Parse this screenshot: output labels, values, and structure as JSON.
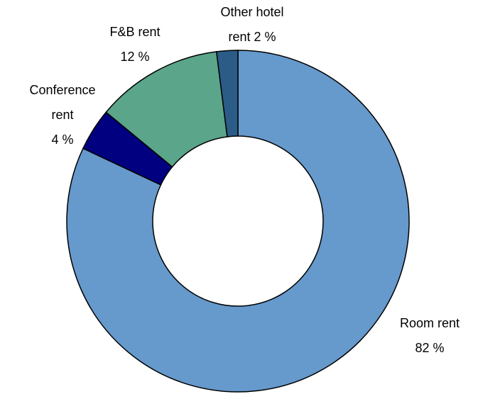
{
  "chart_data": {
    "type": "donut",
    "categories": [
      "Room rent",
      "Conference rent",
      "F&B rent",
      "Other hotel rent"
    ],
    "values": [
      82,
      4,
      12,
      2
    ],
    "value_labels": [
      "82 %",
      "4 %",
      "12 %",
      "2 %"
    ],
    "colors": [
      "#6699cc",
      "#000080",
      "#5ba58a",
      "#2b5c88"
    ]
  }
}
